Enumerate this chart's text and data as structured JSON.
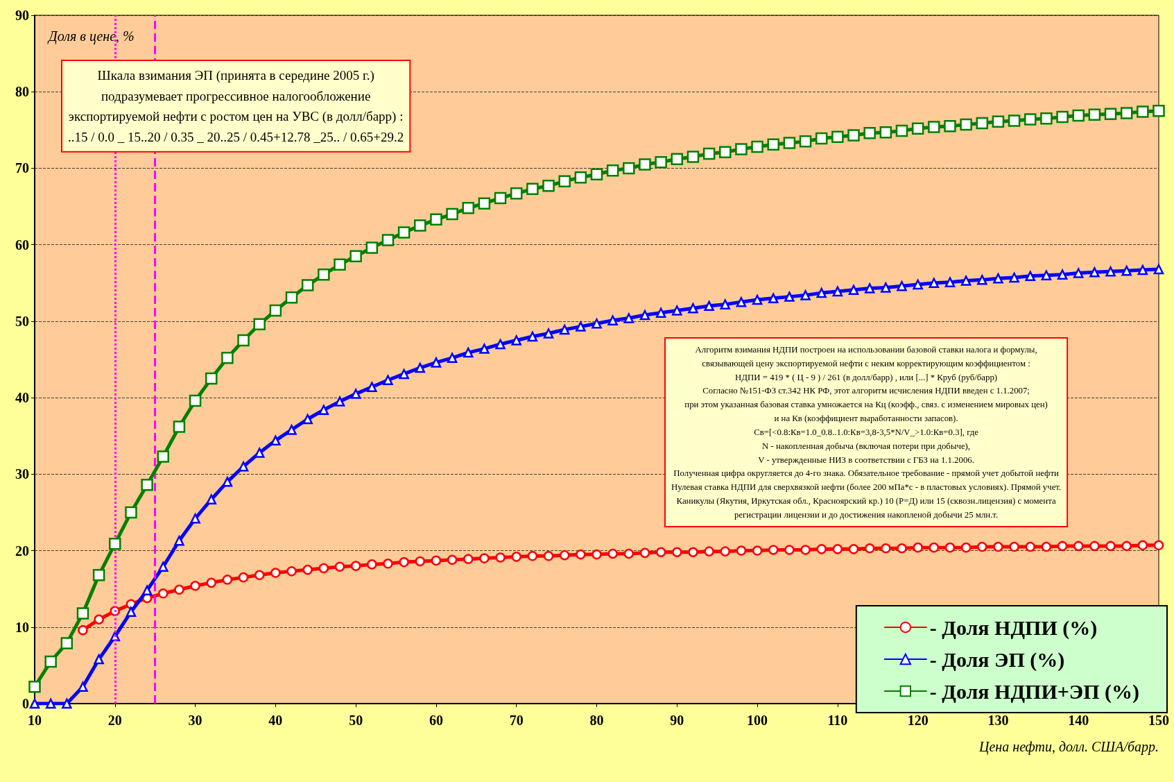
{
  "chart_data": {
    "type": "line",
    "ylabel": "Доля в цене, %",
    "xlabel": "Цена нефти, долл. США/барр.",
    "x": [
      10,
      12,
      14,
      16,
      18,
      20,
      22,
      24,
      26,
      28,
      30,
      32,
      34,
      36,
      38,
      40,
      42,
      44,
      46,
      48,
      50,
      52,
      54,
      56,
      58,
      60,
      62,
      64,
      66,
      68,
      70,
      72,
      74,
      76,
      78,
      80,
      82,
      84,
      86,
      88,
      90,
      92,
      94,
      96,
      98,
      100,
      102,
      104,
      106,
      108,
      110,
      112,
      114,
      116,
      118,
      120,
      122,
      124,
      126,
      128,
      130,
      132,
      134,
      136,
      138,
      140,
      142,
      144,
      146,
      148,
      150
    ],
    "series": [
      {
        "name": "- Доля НДПИ (%)",
        "color": "#ff0000",
        "marker": "circle",
        "values": [
          null,
          null,
          null,
          9.6,
          11.0,
          12.1,
          13.0,
          13.8,
          14.4,
          14.9,
          15.4,
          15.8,
          16.2,
          16.5,
          16.8,
          17.1,
          17.3,
          17.5,
          17.7,
          17.9,
          18.0,
          18.2,
          18.3,
          18.5,
          18.6,
          18.7,
          18.8,
          18.9,
          19.0,
          19.1,
          19.2,
          19.3,
          19.3,
          19.4,
          19.5,
          19.5,
          19.6,
          19.6,
          19.7,
          19.8,
          19.8,
          19.8,
          19.9,
          19.9,
          20.0,
          20.0,
          20.1,
          20.1,
          20.1,
          20.2,
          20.2,
          20.2,
          20.3,
          20.3,
          20.3,
          20.4,
          20.4,
          20.4,
          20.4,
          20.5,
          20.5,
          20.5,
          20.5,
          20.5,
          20.6,
          20.6,
          20.6,
          20.6,
          20.6,
          20.7,
          20.7
        ]
      },
      {
        "name": "- Доля ЭП (%)",
        "color": "#0000ff",
        "marker": "triangle",
        "values": [
          0,
          0,
          0,
          2.2,
          5.8,
          8.8,
          12.0,
          14.8,
          17.9,
          21.3,
          24.2,
          26.7,
          29.0,
          31.0,
          32.8,
          34.4,
          35.8,
          37.2,
          38.4,
          39.5,
          40.5,
          41.4,
          42.3,
          43.1,
          43.9,
          44.6,
          45.2,
          45.9,
          46.4,
          47.0,
          47.5,
          48.0,
          48.4,
          48.9,
          49.3,
          49.7,
          50.1,
          50.4,
          50.8,
          51.1,
          51.4,
          51.7,
          52.0,
          52.2,
          52.5,
          52.8,
          53.0,
          53.2,
          53.4,
          53.7,
          53.9,
          54.1,
          54.3,
          54.4,
          54.6,
          54.8,
          55.0,
          55.1,
          55.3,
          55.4,
          55.6,
          55.7,
          55.9,
          56.0,
          56.1,
          56.3,
          56.4,
          56.5,
          56.6,
          56.7,
          56.8
        ]
      },
      {
        "name": "- Доля НДПИ+ЭП (%)",
        "color": "#008000",
        "marker": "square",
        "values": [
          2.2,
          5.5,
          7.9,
          11.8,
          16.8,
          20.9,
          25.0,
          28.6,
          32.3,
          36.2,
          39.6,
          42.5,
          45.2,
          47.5,
          49.6,
          51.4,
          53.1,
          54.7,
          56.1,
          57.4,
          58.5,
          59.6,
          60.6,
          61.6,
          62.5,
          63.3,
          64.0,
          64.8,
          65.4,
          66.1,
          66.7,
          67.3,
          67.7,
          68.3,
          68.8,
          69.2,
          69.7,
          70.0,
          70.5,
          70.8,
          71.2,
          71.5,
          71.9,
          72.1,
          72.5,
          72.8,
          73.1,
          73.3,
          73.5,
          73.9,
          74.1,
          74.3,
          74.6,
          74.7,
          74.9,
          75.2,
          75.4,
          75.5,
          75.7,
          75.9,
          76.1,
          76.2,
          76.4,
          76.5,
          76.7,
          76.9,
          77.0,
          77.1,
          77.2,
          77.4,
          77.5
        ]
      }
    ],
    "xlim": [
      10,
      150
    ],
    "xticks": [
      10,
      20,
      30,
      40,
      50,
      60,
      70,
      80,
      90,
      100,
      110,
      120,
      130,
      140,
      150
    ],
    "ylim": [
      0,
      90
    ],
    "yticks": [
      0,
      10,
      20,
      30,
      40,
      50,
      60,
      70,
      80,
      90
    ],
    "grid": "y",
    "legend": "bottom right",
    "line_style": "solid",
    "ref_lines": [
      {
        "axis": "x",
        "value": 20,
        "color": "#ff00ff",
        "line_style": "dotted"
      },
      {
        "axis": "x",
        "value": 25,
        "color": "#ff00ff",
        "line_style": "dashed"
      }
    ],
    "annotations": [
      "Шкала взимания ЭП (принята в середине 2005 г.)\nподразумевает прогрессивное налогообложение\nэкспортируемой нефти с ростом цен на УВС (в долл/барр) :\n..15 / 0.0 _ 15..20 / 0.35 _ 20..25 / 0.45+12.78 _25.. / 0.65+29.2",
      "Алгоритм взимания НДПИ построен на использовании базовой ставки налога и формулы,\nсвязывающей цену экспортируемой нефти с неким корректирующим коэффициентом :\nНДПИ = 419 * ( Ц - 9 ) / 261 (в долл/барр) , или [...] * Круб (руб/барр)\nСогласно №151-ФЗ ст.342 НК РФ, этот алгоритм исчисления НДПИ введен с 1.1.2007;\nпри этом указанная базовая ставка умножается на Кц (коэфф., связ. с изменением мировых цен)\nи на Кв (коэффициент выработанности запасов).\nСв=[<0.8:Кв=1.0_0.8..1.0:Кв=3,8-3,5*N/V_>1.0:Кв=0.3], где\nN - накопленная добыча (включая потери при добыче),\nV - утвержденные НИЗ в соответствии с ГБЗ на 1.1.2006.\nПолученная цифра округляется до 4-го знака. Обязательное требование - прямой учет добытой нефти\nНулевая ставка НДПИ для сверхвязкой нефти (более 200 мПа*с - в пластовых условиях). Прямой учет.\nКаникулы (Якутия, Иркутская обл., Красноярский кр.) 10 (Р=Д) или 15 (сквозн.лицензия) с момента\nрегистрации лицензии и до достижения накопленой добычи 25 млн.т."
    ]
  }
}
